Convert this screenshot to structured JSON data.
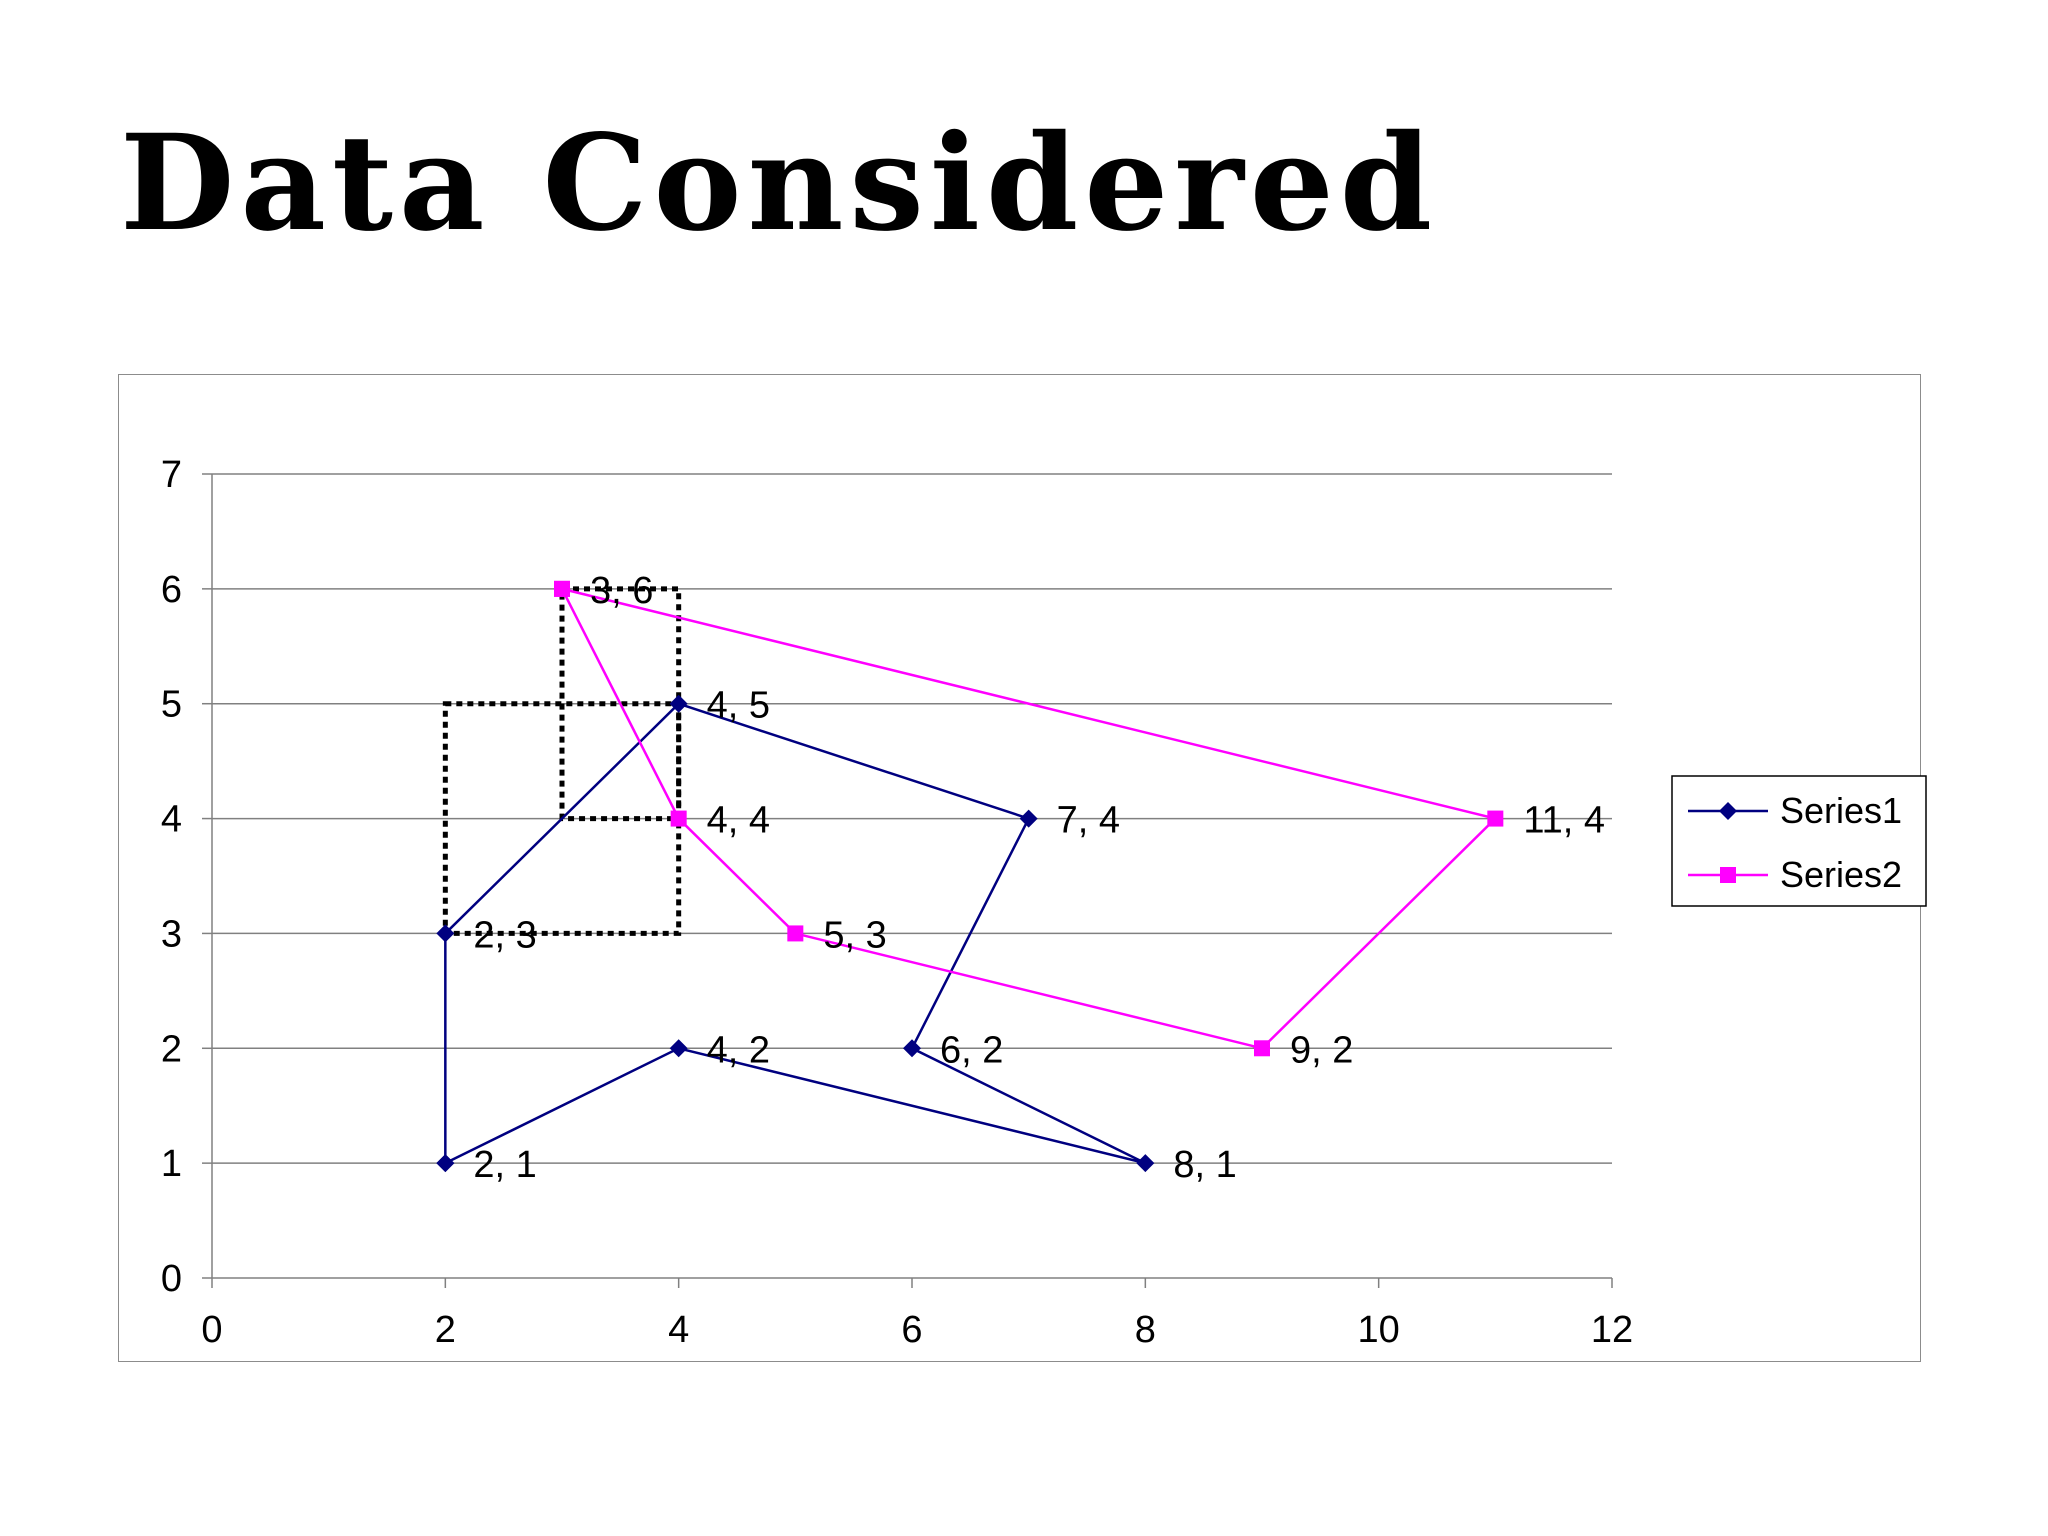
{
  "slide": {
    "title": "Data Considered"
  },
  "colors": {
    "series1": "#000080",
    "series2": "#FF00FF",
    "gridline": "#808080",
    "axis": "#808080",
    "frame": "#8c8c8c",
    "selection_box": "#000000"
  },
  "chart_data": {
    "type": "line",
    "title": "",
    "xlabel": "",
    "ylabel": "",
    "xlim": [
      0,
      12
    ],
    "ylim": [
      0,
      7
    ],
    "xticks": [
      0,
      2,
      4,
      6,
      8,
      10,
      12
    ],
    "yticks": [
      0,
      1,
      2,
      3,
      4,
      5,
      6,
      7
    ],
    "grid": "horizontal",
    "legend_position": "right",
    "series": [
      {
        "name": "Series1",
        "marker": "diamond",
        "points": [
          [
            2,
            1
          ],
          [
            2,
            3
          ],
          [
            4,
            5
          ],
          [
            7,
            4
          ],
          [
            6,
            2
          ],
          [
            8,
            1
          ],
          [
            4,
            2
          ],
          [
            2,
            1
          ]
        ],
        "labels": [
          {
            "x": 2,
            "y": 1,
            "text": "2, 1"
          },
          {
            "x": 2,
            "y": 3,
            "text": "2, 3"
          },
          {
            "x": 4,
            "y": 5,
            "text": "4, 5"
          },
          {
            "x": 7,
            "y": 4,
            "text": "7, 4"
          },
          {
            "x": 6,
            "y": 2,
            "text": "6, 2"
          },
          {
            "x": 8,
            "y": 1,
            "text": "8, 1"
          },
          {
            "x": 4,
            "y": 2,
            "text": "4, 2"
          }
        ]
      },
      {
        "name": "Series2",
        "marker": "square",
        "points": [
          [
            3,
            6
          ],
          [
            4,
            4
          ],
          [
            5,
            3
          ],
          [
            9,
            2
          ],
          [
            11,
            4
          ],
          [
            3,
            6
          ]
        ],
        "labels": [
          {
            "x": 3,
            "y": 6,
            "text": "3, 6"
          },
          {
            "x": 4,
            "y": 4,
            "text": "4, 4"
          },
          {
            "x": 5,
            "y": 3,
            "text": "5, 3"
          },
          {
            "x": 9,
            "y": 2,
            "text": "9, 2"
          },
          {
            "x": 11,
            "y": 4,
            "text": "11, 4"
          }
        ]
      }
    ],
    "annotations": [
      {
        "type": "dotted-rectangle",
        "x_range": [
          2,
          4
        ],
        "y_range": [
          3,
          5
        ]
      },
      {
        "type": "dotted-rectangle",
        "x_range": [
          3,
          4
        ],
        "y_range": [
          4,
          6
        ]
      }
    ]
  }
}
